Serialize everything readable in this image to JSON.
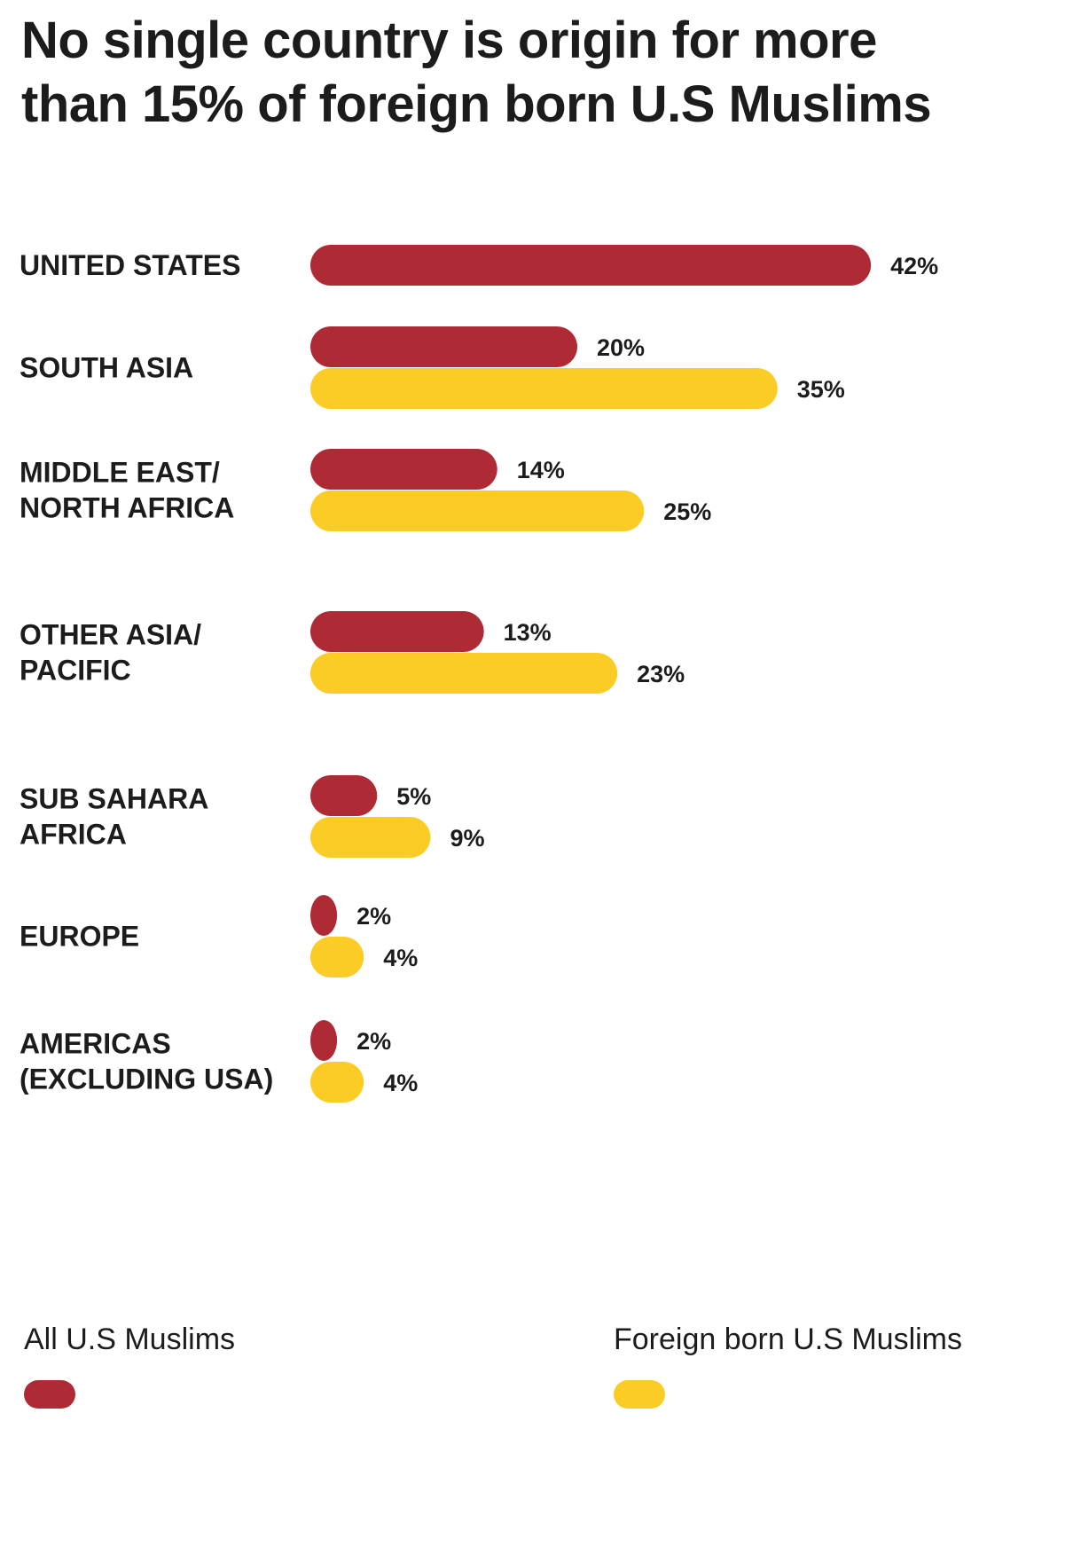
{
  "chart_data": {
    "type": "bar",
    "orientation": "horizontal",
    "title": "No single country is origin for more than 15% of foreign born U.S Muslims",
    "categories": [
      [
        "UNITED STATES"
      ],
      [
        "SOUTH ASIA"
      ],
      [
        "MIDDLE EAST/",
        "NORTH AFRICA"
      ],
      [
        "OTHER ASIA/",
        "PACIFIC"
      ],
      [
        "SUB SAHARA",
        "AFRICA"
      ],
      [
        "EUROPE"
      ],
      [
        "AMERICAS",
        "(EXCLUDING USA)"
      ]
    ],
    "series": [
      {
        "name": "All U.S Muslims",
        "color": "#ae2a34",
        "values": [
          42,
          20,
          14,
          13,
          5,
          2,
          2
        ],
        "labels": [
          "42%",
          "20%",
          "14%",
          "13%",
          "5%",
          "2%",
          "2%"
        ]
      },
      {
        "name": "Foreign born U.S Muslims",
        "color": "#fccc26",
        "values": [
          null,
          35,
          25,
          23,
          9,
          4,
          4
        ],
        "labels": [
          "",
          "35%",
          "25%",
          "23%",
          "9%",
          "4%",
          "4%"
        ]
      }
    ],
    "unit": "%",
    "legend_position": "bottom",
    "grid": false
  }
}
